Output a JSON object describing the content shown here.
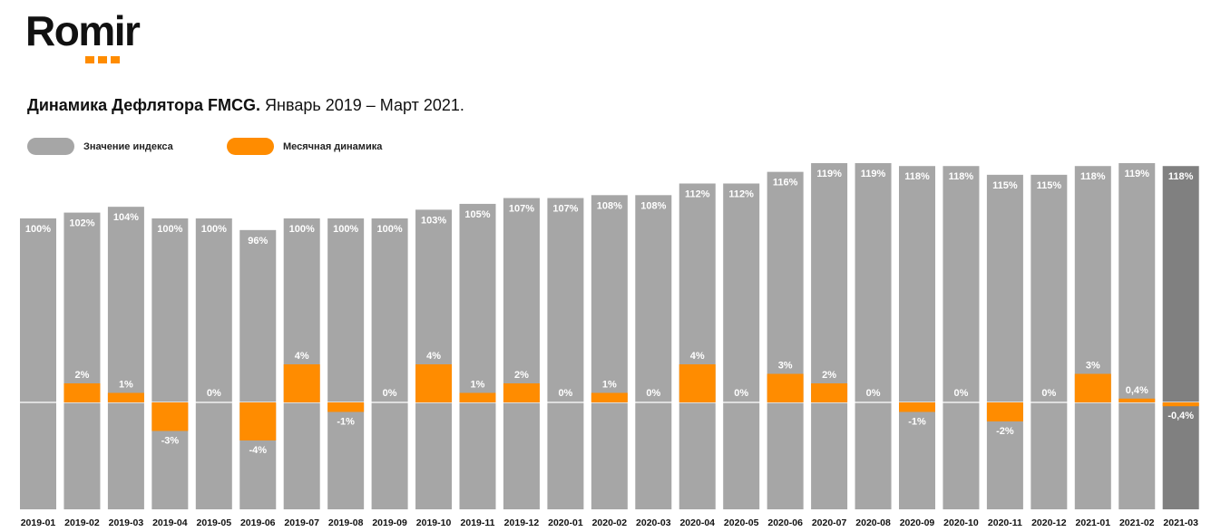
{
  "logo": {
    "text": "Romir"
  },
  "title": {
    "bold": "Динамика Дефлятора FMCG.",
    "rest": " Январь 2019 – Март 2021."
  },
  "legend": [
    {
      "label": "Значение индекса",
      "color": "#a6a6a6"
    },
    {
      "label": "Месячная динамика",
      "color": "#ff8c00"
    }
  ],
  "colors": {
    "index": "#a6a6a6",
    "index_last": "#808080",
    "monthly": "#ff8c00"
  },
  "chart_data": {
    "type": "bar",
    "categories": [
      "2019-01",
      "2019-02",
      "2019-03",
      "2019-04",
      "2019-05",
      "2019-06",
      "2019-07",
      "2019-08",
      "2019-09",
      "2019-10",
      "2019-11",
      "2019-12",
      "2020-01",
      "2020-02",
      "2020-03",
      "2020-04",
      "2020-05",
      "2020-06",
      "2020-07",
      "2020-08",
      "2020-09",
      "2020-10",
      "2020-11",
      "2020-12",
      "2021-01",
      "2021-02",
      "2021-03"
    ],
    "series": [
      {
        "name": "Значение индекса",
        "values": [
          100,
          102,
          104,
          100,
          100,
          96,
          100,
          100,
          100,
          103,
          105,
          107,
          107,
          108,
          108,
          112,
          112,
          116,
          119,
          119,
          118,
          118,
          115,
          115,
          118,
          119,
          118
        ],
        "labels": [
          "100%",
          "102%",
          "104%",
          "100%",
          "100%",
          "96%",
          "100%",
          "100%",
          "100%",
          "103%",
          "105%",
          "107%",
          "107%",
          "108%",
          "108%",
          "112%",
          "112%",
          "116%",
          "119%",
          "119%",
          "118%",
          "118%",
          "115%",
          "115%",
          "118%",
          "119%",
          "118%"
        ]
      },
      {
        "name": "Месячная динамика",
        "values": [
          0,
          2,
          1,
          -3,
          0,
          -4,
          4,
          -1,
          0,
          4,
          1,
          2,
          0,
          1,
          0,
          4,
          0,
          3,
          2,
          0,
          -1,
          0,
          -2,
          0,
          3,
          0.4,
          -0.4
        ],
        "labels": [
          "",
          "2%",
          "1%",
          "-3%",
          "0%",
          "-4%",
          "4%",
          "-1%",
          "0%",
          "4%",
          "1%",
          "2%",
          "0%",
          "1%",
          "0%",
          "4%",
          "0%",
          "3%",
          "2%",
          "0%",
          "-1%",
          "0%",
          "-2%",
          "0%",
          "3%",
          "0,4%",
          "-0,4%"
        ]
      }
    ]
  }
}
